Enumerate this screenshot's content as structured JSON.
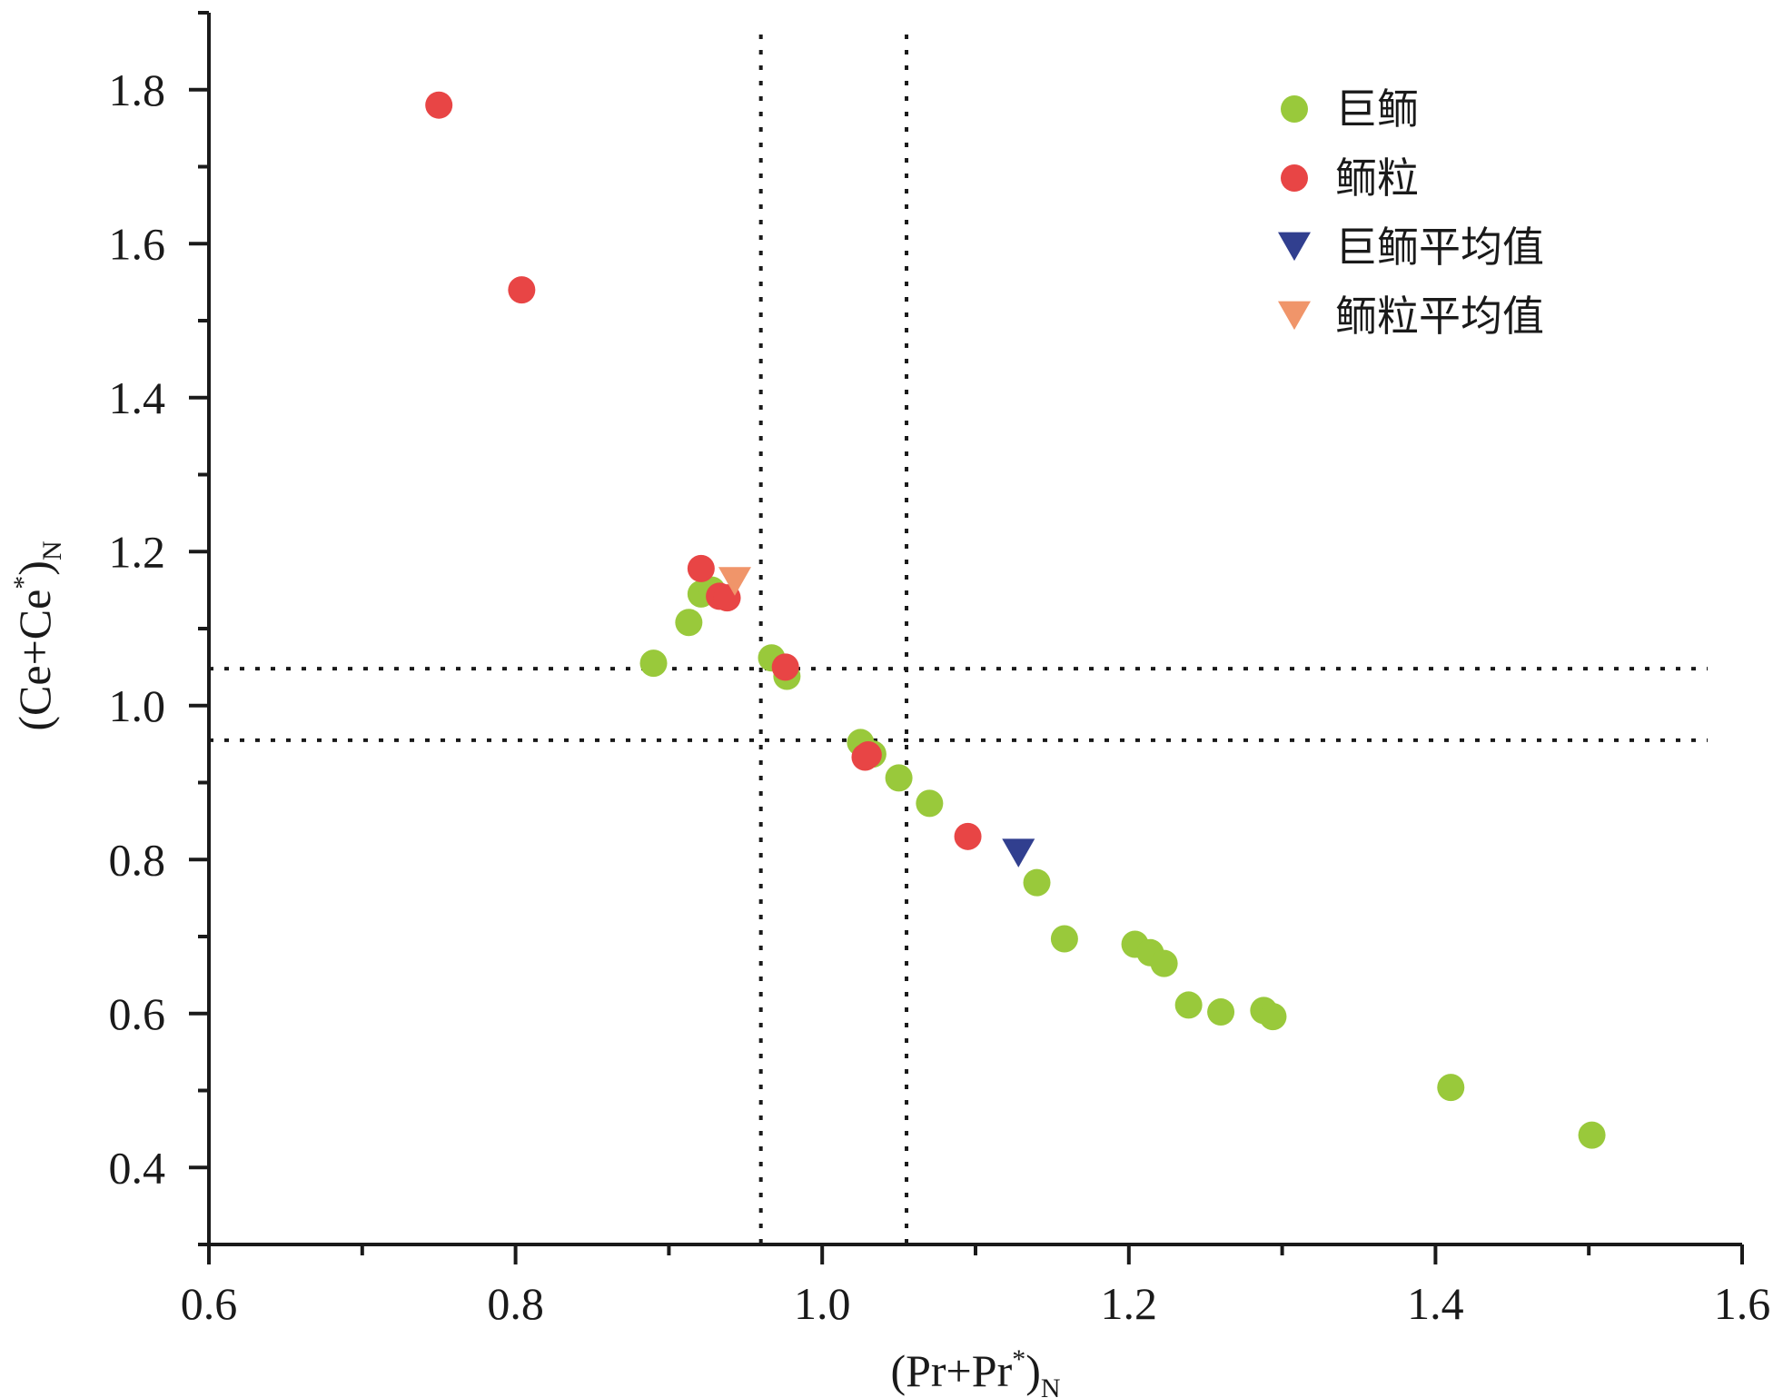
{
  "chart_data": {
    "type": "scatter",
    "title": "",
    "xlabel": {
      "main": "(Pr+Pr",
      "sup": "*",
      "close": ")",
      "sub": "N"
    },
    "ylabel": {
      "main": "(Ce+Ce",
      "sup": "*",
      "close": ")",
      "sub": "N"
    },
    "xlim": [
      0.6,
      1.6
    ],
    "ylim": [
      0.3,
      1.9
    ],
    "x_ticks": [
      "0.6",
      "0.8",
      "1.0",
      "1.2",
      "1.4",
      "1.6"
    ],
    "y_ticks": [
      "0.4",
      "0.6",
      "0.8",
      "1.0",
      "1.2",
      "1.4",
      "1.6",
      "1.8"
    ],
    "reference_lines": {
      "vertical": [
        0.96,
        1.055
      ],
      "horizontal": [
        0.955,
        1.048
      ],
      "style": "dotted"
    },
    "legend_position": "top-right",
    "series": [
      {
        "name": "巨鲕",
        "marker": "circle",
        "color": "#99c93b",
        "points": [
          [
            0.89,
            1.055
          ],
          [
            0.913,
            1.108
          ],
          [
            0.921,
            1.145
          ],
          [
            0.928,
            1.15
          ],
          [
            0.967,
            1.062
          ],
          [
            0.977,
            1.038
          ],
          [
            1.025,
            0.952
          ],
          [
            1.033,
            0.937
          ],
          [
            1.05,
            0.906
          ],
          [
            1.07,
            0.873
          ],
          [
            1.14,
            0.77
          ],
          [
            1.158,
            0.697
          ],
          [
            1.204,
            0.69
          ],
          [
            1.214,
            0.679
          ],
          [
            1.223,
            0.665
          ],
          [
            1.239,
            0.611
          ],
          [
            1.26,
            0.602
          ],
          [
            1.288,
            0.604
          ],
          [
            1.294,
            0.596
          ],
          [
            1.41,
            0.504
          ],
          [
            1.502,
            0.442
          ]
        ]
      },
      {
        "name": "鲕粒",
        "marker": "circle",
        "color": "#e84545",
        "points": [
          [
            0.75,
            1.78
          ],
          [
            0.804,
            1.54
          ],
          [
            0.921,
            1.178
          ],
          [
            0.933,
            1.142
          ],
          [
            0.938,
            1.14
          ],
          [
            0.976,
            1.05
          ],
          [
            1.028,
            0.933
          ],
          [
            1.03,
            0.936
          ],
          [
            1.095,
            0.83
          ]
        ]
      },
      {
        "name": "巨鲕平均值",
        "marker": "triangle-down",
        "color": "#313f8f",
        "points": [
          [
            1.128,
            0.81
          ]
        ]
      },
      {
        "name": "鲕粒平均值",
        "marker": "triangle-down",
        "color": "#f0956a",
        "points": [
          [
            0.943,
            1.163
          ]
        ]
      }
    ]
  }
}
